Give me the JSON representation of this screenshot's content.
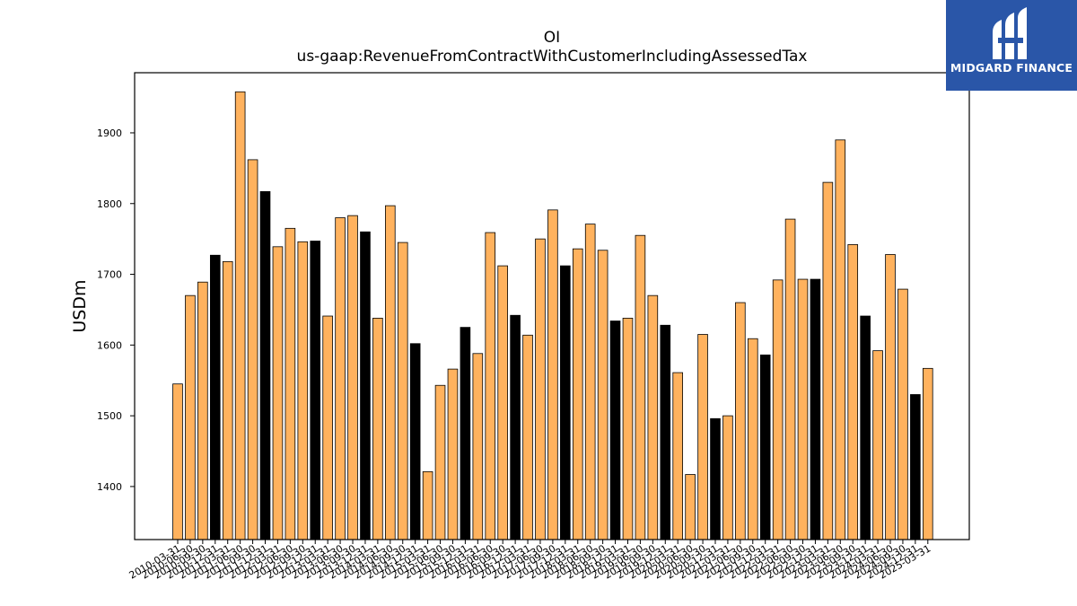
{
  "chart_data": {
    "type": "bar",
    "title": "OI",
    "subtitle": "us-gaap:RevenueFromContractWithCustomerIncludingAssessedTax",
    "xlabel": "",
    "ylabel": "USDm",
    "ylim": [
      1325,
      1985
    ],
    "yticks": [
      1400,
      1500,
      1600,
      1700,
      1800,
      1900
    ],
    "grid": false,
    "colors": {
      "default": "#ffb25e",
      "highlight": "#000000",
      "edge": "#000000"
    },
    "categories": [
      "2010-03-31",
      "2010-06-30",
      "2010-09-30",
      "2010-12-31",
      "2011-03-31",
      "2011-06-30",
      "2011-09-30",
      "2011-12-31",
      "2012-03-31",
      "2012-06-30",
      "2012-09-30",
      "2012-12-31",
      "2013-03-31",
      "2013-06-30",
      "2013-09-30",
      "2013-12-31",
      "2014-03-31",
      "2014-06-30",
      "2014-09-30",
      "2014-12-31",
      "2015-03-31",
      "2015-06-30",
      "2015-09-30",
      "2015-12-31",
      "2016-03-31",
      "2016-06-30",
      "2016-09-30",
      "2016-12-31",
      "2017-03-31",
      "2017-06-30",
      "2017-09-30",
      "2017-12-31",
      "2018-03-31",
      "2018-06-30",
      "2018-09-30",
      "2018-12-31",
      "2019-03-31",
      "2019-06-30",
      "2019-09-30",
      "2019-12-31",
      "2020-03-31",
      "2020-06-30",
      "2020-09-30",
      "2020-12-31",
      "2021-03-31",
      "2021-06-30",
      "2021-09-30",
      "2021-12-31",
      "2022-03-31",
      "2022-06-30",
      "2022-09-30",
      "2022-12-31",
      "2023-03-31",
      "2023-06-30",
      "2023-09-30",
      "2023-12-31",
      "2024-03-31",
      "2024-06-30",
      "2024-09-30",
      "2024-12-31",
      "2025-03-31"
    ],
    "values": [
      1545,
      1670,
      1689,
      1727,
      1718,
      1958,
      1862,
      1817,
      1739,
      1765,
      1746,
      1747,
      1641,
      1780,
      1783,
      1760,
      1638,
      1797,
      1745,
      1602,
      1421,
      1543,
      1566,
      1625,
      1588,
      1759,
      1712,
      1642,
      1614,
      1750,
      1791,
      1712,
      1736,
      1771,
      1734,
      1634,
      1638,
      1755,
      1670,
      1628,
      1561,
      1417,
      1615,
      1496,
      1500,
      1660,
      1609,
      1586,
      1692,
      1778,
      1693,
      1693,
      1830,
      1890,
      1742,
      1641,
      1592,
      1728,
      1679,
      1530,
      1567
    ],
    "highlighted": [
      false,
      false,
      false,
      true,
      false,
      false,
      false,
      true,
      false,
      false,
      false,
      true,
      false,
      false,
      false,
      true,
      false,
      false,
      false,
      true,
      false,
      false,
      false,
      true,
      false,
      false,
      false,
      true,
      false,
      false,
      false,
      true,
      false,
      false,
      false,
      true,
      false,
      false,
      false,
      true,
      false,
      false,
      false,
      true,
      false,
      false,
      false,
      true,
      false,
      false,
      false,
      true,
      false,
      false,
      false,
      true,
      false,
      false,
      false,
      true,
      false
    ]
  },
  "logo": {
    "text": "MIDGARD FINANCE",
    "icon": "midgard-logo-icon",
    "bg": "#2a56a8"
  }
}
